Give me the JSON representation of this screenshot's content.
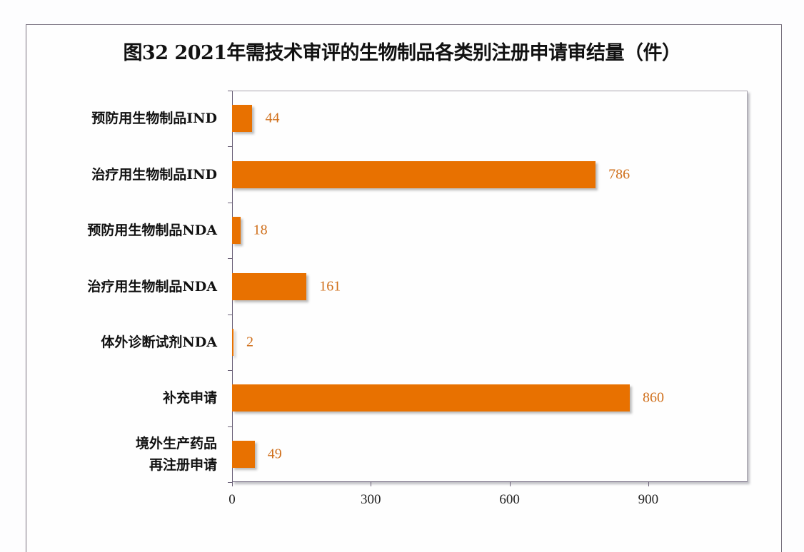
{
  "chart_data": {
    "type": "bar",
    "orientation": "horizontal",
    "title": "图32 2021年需技术审评的生物制品各类别注册申请审结量（件）",
    "categories": [
      "预防用生物制品IND",
      "治疗用生物制品IND",
      "预防用生物制品NDA",
      "治疗用生物制品NDA",
      "体外诊断试剂NDA",
      "补充申请",
      "境外生产药品再注册申请"
    ],
    "category_lines": [
      [
        "预防用生物制品IND"
      ],
      [
        "治疗用生物制品IND"
      ],
      [
        "预防用生物制品NDA"
      ],
      [
        "治疗用生物制品NDA"
      ],
      [
        "体外诊断试剂NDA"
      ],
      [
        "补充申请"
      ],
      [
        "境外生产药品",
        "再注册申请"
      ]
    ],
    "values": [
      44,
      786,
      18,
      161,
      2,
      860,
      49
    ],
    "value_labels": [
      "44",
      "786",
      "18",
      "161",
      "2",
      "860",
      "49"
    ],
    "xlabel": "",
    "ylabel": "",
    "xlim": [
      0,
      1115
    ],
    "x_ticks": [
      0,
      300,
      600,
      900
    ],
    "x_tick_labels": [
      "0",
      "300",
      "600",
      "900"
    ],
    "grid": false,
    "legend": "none",
    "bar_color": "#e87100",
    "label_color": "#d0701c"
  }
}
